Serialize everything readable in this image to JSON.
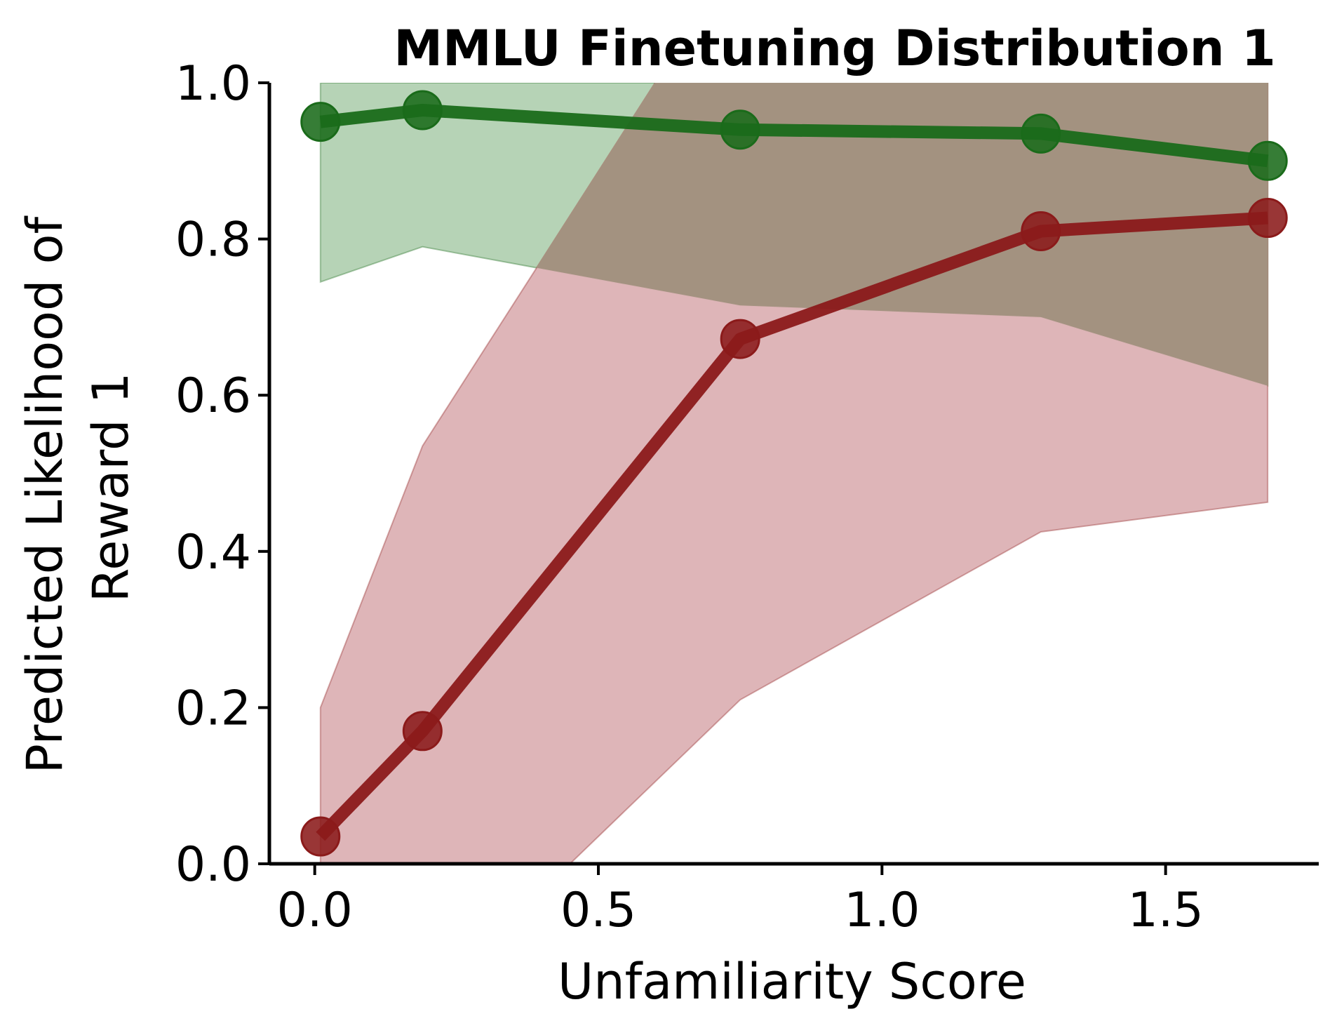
{
  "chart_data": {
    "type": "line",
    "title": "MMLU Finetuning Distribution 1",
    "xlabel": "Unfamiliarity Score",
    "ylabel_lines": [
      "Predicted Likelihood of",
      "Reward 1"
    ],
    "xlim": [
      -0.08,
      1.77
    ],
    "ylim": [
      0.0,
      1.0
    ],
    "xticks": [
      "0.0",
      "0.5",
      "1.0",
      "1.5"
    ],
    "xtick_values": [
      0.0,
      0.5,
      1.0,
      1.5
    ],
    "yticks": [
      "0.0",
      "0.2",
      "0.4",
      "0.6",
      "0.8",
      "1.0"
    ],
    "ytick_values": [
      0.0,
      0.2,
      0.4,
      0.6,
      0.8,
      1.0
    ],
    "grid": false,
    "x": [
      0.01,
      0.19,
      0.75,
      1.28,
      1.68
    ],
    "series": [
      {
        "color": "#1a6b1a",
        "band_color": "#b2d1b2",
        "values": [
          0.95,
          0.965,
          0.94,
          0.935,
          0.9
        ],
        "lower": [
          0.745,
          0.79,
          0.715,
          0.7,
          0.612
        ],
        "upper": [
          1.0,
          1.0,
          1.0,
          1.0,
          1.0
        ]
      },
      {
        "color": "#8b1a1a",
        "band_color": "#dcb1b4",
        "values": [
          0.035,
          0.17,
          0.672,
          0.81,
          0.827
        ],
        "lower": [
          0.0,
          0.0,
          0.21,
          0.425,
          0.463
        ],
        "upper": [
          0.2,
          0.535,
          1.0,
          1.0,
          1.0
        ],
        "lower_zero_crossing_x": 0.45,
        "upper_one_crossing_x": 0.6
      }
    ],
    "overlap_color": "#a39280"
  }
}
